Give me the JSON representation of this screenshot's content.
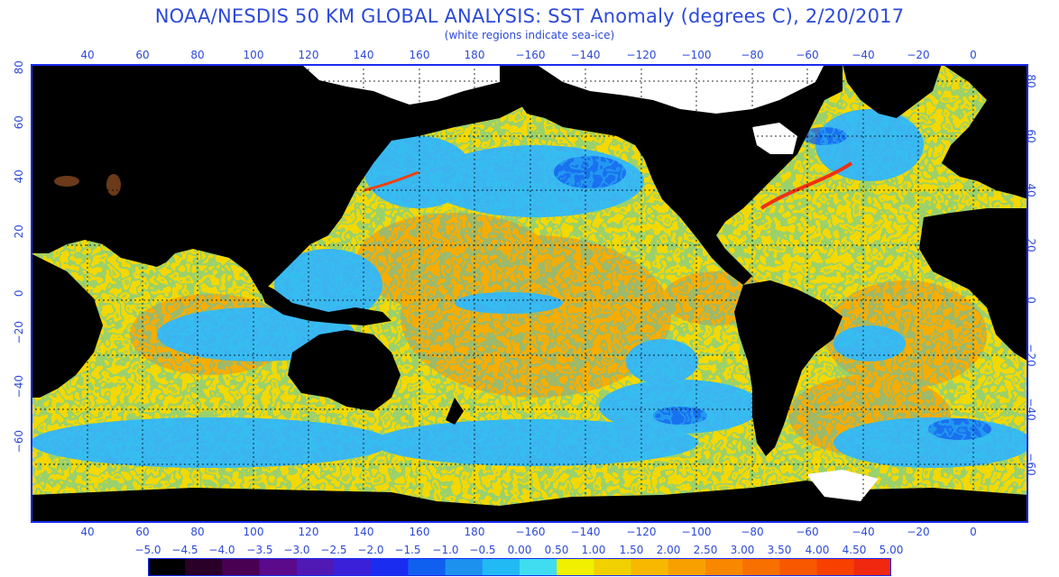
{
  "header": {
    "title": "NOAA/NESDIS 50 KM GLOBAL ANALYSIS: SST Anomaly (degrees C), 2/20/2017",
    "subtitle": "(white regions indicate sea-ice)"
  },
  "axes": {
    "longitude_labels": [
      "40",
      "60",
      "80",
      "100",
      "120",
      "140",
      "160",
      "180",
      "−160",
      "−140",
      "−120",
      "−100",
      "−80",
      "−60",
      "−40",
      "−20",
      "0"
    ],
    "latitude_labels": [
      "80",
      "60",
      "40",
      "20",
      "0",
      "−20",
      "−40",
      "−60"
    ]
  },
  "legend": {
    "labels": [
      "−5.0",
      "−4.5",
      "−4.0",
      "−3.5",
      "−3.0",
      "−2.5",
      "−2.0",
      "−1.5",
      "−1.0",
      "−0.5",
      "0.00",
      "0.50",
      "1.00",
      "1.50",
      "2.00",
      "2.50",
      "3.00",
      "3.50",
      "4.00",
      "4.50",
      "5.00"
    ],
    "colors": [
      "#000000",
      "#2a0029",
      "#4a0052",
      "#5a0a8a",
      "#5018b4",
      "#3a20d8",
      "#1a2cf0",
      "#1060f0",
      "#1c92ee",
      "#22baf4",
      "#40dcf0",
      "#f0f000",
      "#f0d000",
      "#f8b800",
      "#f8a000",
      "#f88800",
      "#f87000",
      "#f85800",
      "#f84000",
      "#f02810"
    ]
  },
  "colors": {
    "land": "#000000",
    "sea_ice": "#ffffff",
    "frame": "#1a2cf0",
    "grid": "#000000"
  }
}
